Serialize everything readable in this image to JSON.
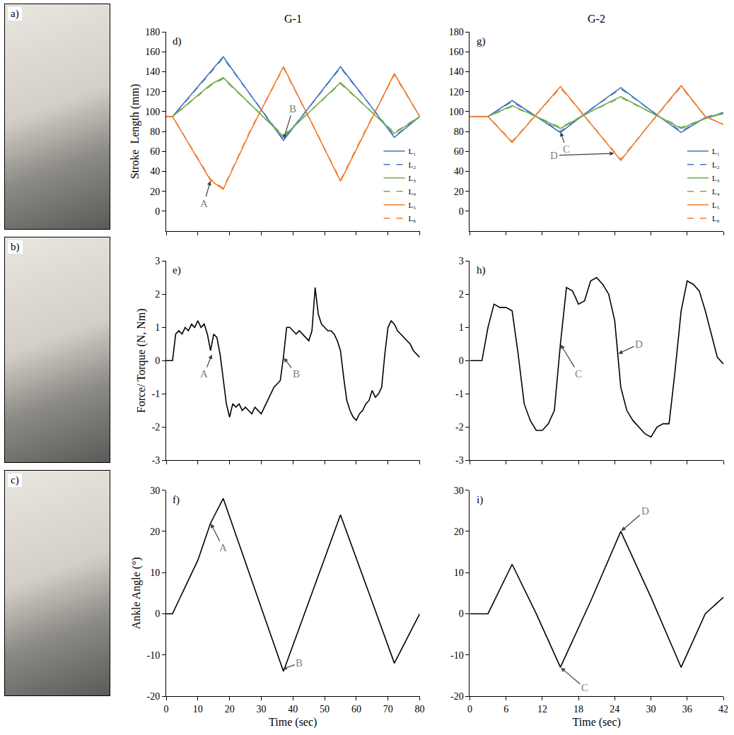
{
  "photos": [
    {
      "label": "a)"
    },
    {
      "label": "b)"
    },
    {
      "label": "c)"
    }
  ],
  "chart_data": [
    {
      "type": "line",
      "title": "G-1",
      "panel_label": "d)",
      "y_label": "Stroke  Length (mm)",
      "x": [
        0,
        2,
        14,
        18,
        27,
        37,
        46,
        55,
        63,
        72,
        80
      ],
      "series": [
        {
          "name": "L₁",
          "color": "#4472c4",
          "line_style": "solid",
          "values": [
            95,
            95,
            140,
            155,
            115,
            71,
            108,
            145,
            112,
            74,
            95
          ]
        },
        {
          "name": "L₂",
          "color": "#4472c4",
          "line_style": "dashed",
          "values": [
            95,
            95,
            139,
            154,
            115,
            72,
            108,
            144,
            112,
            75,
            95
          ]
        },
        {
          "name": "L₃",
          "color": "#70ad47",
          "line_style": "solid",
          "values": [
            95,
            95,
            127,
            134,
            106,
            75,
            102,
            129,
            105,
            78,
            95
          ]
        },
        {
          "name": "L₄",
          "color": "#70ad47",
          "line_style": "dashed",
          "values": [
            95,
            95,
            126,
            133,
            106,
            76,
            102,
            128,
            105,
            79,
            95
          ]
        },
        {
          "name": "L₅",
          "color": "#ed7d31",
          "line_style": "solid",
          "values": [
            95,
            95,
            31,
            22,
            83,
            145,
            88,
            30,
            81,
            138,
            95
          ]
        },
        {
          "name": "L₆",
          "color": "#ed7d31",
          "line_style": "dashed",
          "values": [
            95,
            95,
            32,
            23,
            84,
            144,
            88,
            31,
            82,
            137,
            95
          ]
        }
      ],
      "xlim": [
        0,
        80
      ],
      "xticks": [
        0,
        10,
        20,
        30,
        40,
        50,
        60,
        70,
        80
      ],
      "ylim": [
        -20,
        180
      ],
      "yticks": [
        0,
        20,
        40,
        60,
        80,
        100,
        120,
        140,
        160,
        180
      ],
      "grid": false,
      "legend": "lower right",
      "tick_labels": "y",
      "annotations": [
        {
          "text": "A",
          "x": 14,
          "y": 31,
          "text_x": 12,
          "text_y": 8
        },
        {
          "text": "B",
          "x": 37,
          "y": 72,
          "text_x": 40,
          "text_y": 103
        }
      ]
    },
    {
      "type": "line",
      "panel_label": "e)",
      "y_label": "Force/ Torque (N, Nm)",
      "x": [
        0,
        1,
        2,
        3,
        4,
        5,
        6,
        7,
        8,
        9,
        10,
        11,
        12,
        13,
        14,
        15,
        16,
        17,
        18,
        19,
        20,
        21,
        22,
        23,
        24,
        25,
        26,
        27,
        28,
        29,
        30,
        31,
        32,
        33,
        34,
        35,
        36,
        37,
        38,
        39,
        40,
        41,
        42,
        43,
        44,
        45,
        46,
        47,
        48,
        49,
        50,
        51,
        52,
        53,
        54,
        55,
        56,
        57,
        58,
        59,
        60,
        61,
        62,
        63,
        64,
        65,
        66,
        67,
        68,
        69,
        70,
        71,
        72,
        73,
        74,
        75,
        76,
        77,
        78,
        79,
        80
      ],
      "series": [
        {
          "color": "#000000",
          "line_style": "solid",
          "values": [
            0,
            0,
            0,
            0.8,
            0.9,
            0.8,
            1.0,
            0.9,
            1.1,
            1.0,
            1.2,
            1.0,
            1.1,
            0.8,
            0.3,
            0.8,
            0.7,
            0.2,
            -0.6,
            -1.3,
            -1.7,
            -1.3,
            -1.4,
            -1.3,
            -1.5,
            -1.4,
            -1.5,
            -1.6,
            -1.4,
            -1.5,
            -1.6,
            -1.4,
            -1.2,
            -1.0,
            -0.8,
            -0.7,
            -0.6,
            0.1,
            1.0,
            1.0,
            0.9,
            0.8,
            0.9,
            0.8,
            0.7,
            0.6,
            0.9,
            2.2,
            1.4,
            1.1,
            1.0,
            0.9,
            0.9,
            0.8,
            0.6,
            0.3,
            -0.5,
            -1.2,
            -1.5,
            -1.7,
            -1.8,
            -1.6,
            -1.5,
            -1.3,
            -1.2,
            -0.9,
            -1.1,
            -1.0,
            -0.8,
            0.2,
            1.0,
            1.2,
            1.1,
            0.9,
            0.8,
            0.7,
            0.6,
            0.5,
            0.3,
            0.2,
            0.1
          ]
        }
      ],
      "xlim": [
        0,
        80
      ],
      "xticks": [
        0,
        10,
        20,
        30,
        40,
        50,
        60,
        70,
        80
      ],
      "ylim": [
        -3,
        3
      ],
      "yticks": [
        -3,
        -2,
        -1,
        0,
        1,
        2,
        3
      ],
      "grid": false,
      "tick_labels": "y",
      "annotations": [
        {
          "text": "A",
          "x": 14.5,
          "y": 0.2,
          "text_x": 12,
          "text_y": -0.4
        },
        {
          "text": "B",
          "x": 37,
          "y": 0.1,
          "text_x": 41,
          "text_y": -0.4
        }
      ]
    },
    {
      "type": "line",
      "panel_label": "f)",
      "y_label": "Ankle Angle (°)",
      "x_label": "Time (sec)",
      "x": [
        0,
        2,
        10,
        14,
        18,
        27,
        37,
        46,
        55,
        64,
        72,
        80
      ],
      "series": [
        {
          "color": "#000000",
          "line_style": "solid",
          "values": [
            0,
            0,
            13,
            22,
            28,
            8,
            -14,
            5,
            24,
            5,
            -12,
            0
          ]
        }
      ],
      "xlim": [
        0,
        80
      ],
      "xticks": [
        0,
        10,
        20,
        30,
        40,
        50,
        60,
        70,
        80
      ],
      "ylim": [
        -20,
        30
      ],
      "yticks": [
        -20,
        -10,
        0,
        10,
        20,
        30
      ],
      "grid": false,
      "annotations": [
        {
          "text": "A",
          "x": 14,
          "y": 22,
          "text_x": 18,
          "text_y": 16
        },
        {
          "text": "B",
          "x": 36.5,
          "y": -13.5,
          "text_x": 42,
          "text_y": -12
        }
      ]
    },
    {
      "type": "line",
      "title": "G-2",
      "panel_label": "g)",
      "x": [
        0,
        3,
        7,
        11,
        15,
        20,
        25,
        30,
        35,
        39,
        42
      ],
      "series": [
        {
          "name": "L₁",
          "color": "#4472c4",
          "line_style": "solid",
          "values": [
            95,
            95,
            111,
            95,
            79,
            102,
            124,
            101,
            79,
            94,
            98
          ]
        },
        {
          "name": "L₂",
          "color": "#4472c4",
          "line_style": "dashed",
          "values": [
            95,
            95,
            110,
            95,
            80,
            102,
            123,
            101,
            80,
            94,
            99
          ]
        },
        {
          "name": "L₃",
          "color": "#70ad47",
          "line_style": "solid",
          "values": [
            95,
            95,
            106,
            95,
            83,
            100,
            115,
            99,
            83,
            93,
            98
          ]
        },
        {
          "name": "L₄",
          "color": "#70ad47",
          "line_style": "dashed",
          "values": [
            95,
            95,
            105,
            95,
            84,
            100,
            114,
            99,
            84,
            93,
            99
          ]
        },
        {
          "name": "L₅",
          "color": "#ed7d31",
          "line_style": "solid",
          "values": [
            95,
            95,
            69,
            97,
            125,
            88,
            51,
            89,
            126,
            95,
            87
          ]
        },
        {
          "name": "L₆",
          "color": "#ed7d31",
          "line_style": "dashed",
          "values": [
            95,
            95,
            70,
            97,
            124,
            88,
            52,
            89,
            125,
            95,
            87
          ]
        }
      ],
      "xlim": [
        0,
        42
      ],
      "xticks": [
        0,
        6,
        12,
        18,
        24,
        30,
        36,
        42
      ],
      "ylim": [
        -20,
        180
      ],
      "yticks": [
        0,
        20,
        40,
        60,
        80,
        100,
        120,
        140,
        160,
        180
      ],
      "grid": false,
      "legend": "lower right",
      "tick_labels": "y",
      "annotations": [
        {
          "text": "C",
          "x": 15,
          "y": 80,
          "text_x": 16,
          "text_y": 62
        },
        {
          "text": "D",
          "x": 24,
          "y": 58,
          "text_x": 14,
          "text_y": 56
        }
      ]
    },
    {
      "type": "line",
      "panel_label": "h)",
      "x": [
        0,
        1,
        2,
        3,
        4,
        5,
        6,
        7,
        8,
        9,
        10,
        11,
        12,
        13,
        14,
        15,
        16,
        17,
        18,
        19,
        20,
        21,
        22,
        23,
        24,
        25,
        26,
        27,
        28,
        29,
        30,
        31,
        32,
        33,
        34,
        35,
        36,
        37,
        38,
        39,
        40,
        41,
        42
      ],
      "series": [
        {
          "color": "#000000",
          "line_style": "solid",
          "values": [
            0,
            0,
            0,
            1.0,
            1.7,
            1.6,
            1.6,
            1.5,
            0.2,
            -1.3,
            -1.8,
            -2.1,
            -2.1,
            -1.9,
            -1.5,
            0.5,
            2.2,
            2.1,
            1.7,
            1.8,
            2.4,
            2.5,
            2.3,
            2.0,
            1.2,
            -0.8,
            -1.5,
            -1.8,
            -2.0,
            -2.2,
            -2.3,
            -2.0,
            -1.9,
            -1.9,
            -0.3,
            1.5,
            2.4,
            2.3,
            2.1,
            1.5,
            0.8,
            0.1,
            -0.1
          ]
        }
      ],
      "xlim": [
        0,
        42
      ],
      "xticks": [
        0,
        6,
        12,
        18,
        24,
        30,
        36,
        42
      ],
      "ylim": [
        -3,
        3
      ],
      "yticks": [
        -3,
        -2,
        -1,
        0,
        1,
        2,
        3
      ],
      "grid": false,
      "tick_labels": "y",
      "annotations": [
        {
          "text": "C",
          "x": 15,
          "y": 0.5,
          "text_x": 18,
          "text_y": -0.4
        },
        {
          "text": "D",
          "x": 24.5,
          "y": 0.2,
          "text_x": 28,
          "text_y": 0.5
        }
      ]
    },
    {
      "type": "line",
      "panel_label": "i)",
      "x_label": "Time (sec)",
      "x": [
        0,
        3,
        7,
        11,
        15,
        20,
        25,
        30,
        35,
        39,
        42
      ],
      "series": [
        {
          "color": "#000000",
          "line_style": "solid",
          "values": [
            0,
            0,
            12,
            0,
            -13,
            3,
            20,
            4,
            -13,
            0,
            4
          ]
        }
      ],
      "xlim": [
        0,
        42
      ],
      "xticks": [
        0,
        6,
        12,
        18,
        24,
        30,
        36,
        42
      ],
      "ylim": [
        -20,
        30
      ],
      "yticks": [
        -20,
        -10,
        0,
        10,
        20,
        30
      ],
      "grid": false,
      "annotations": [
        {
          "text": "C",
          "x": 15,
          "y": -13,
          "text_x": 19,
          "text_y": -18
        },
        {
          "text": "D",
          "x": 25,
          "y": 20,
          "text_x": 29,
          "text_y": 25
        }
      ]
    }
  ]
}
